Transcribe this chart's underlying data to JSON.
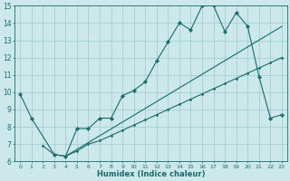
{
  "xlabel": "Humidex (Indice chaleur)",
  "ylabel": "",
  "xlim": [
    -0.5,
    23.5
  ],
  "ylim": [
    6,
    15
  ],
  "xticks": [
    0,
    1,
    2,
    3,
    4,
    5,
    6,
    7,
    8,
    9,
    10,
    11,
    12,
    13,
    14,
    15,
    16,
    17,
    18,
    19,
    20,
    21,
    22,
    23
  ],
  "yticks": [
    6,
    7,
    8,
    9,
    10,
    11,
    12,
    13,
    14,
    15
  ],
  "background_color": "#cce8ea",
  "grid_color": "#99cccc",
  "line_color": "#1a6b6b",
  "line1_x": [
    0,
    1,
    3,
    4,
    5,
    6,
    7,
    8,
    9,
    10,
    11,
    12,
    13,
    14,
    15,
    16,
    17,
    18,
    19,
    20,
    21,
    22,
    23
  ],
  "line1_y": [
    9.9,
    8.5,
    6.4,
    6.3,
    7.9,
    7.9,
    8.5,
    8.5,
    9.8,
    10.1,
    10.6,
    11.8,
    12.9,
    14.0,
    13.6,
    15.0,
    15.0,
    13.5,
    14.6,
    13.8,
    10.9,
    8.5,
    8.7
  ],
  "line2_x": [
    2,
    3,
    4,
    5,
    6,
    7,
    8,
    9,
    10,
    11,
    12,
    13,
    14,
    15,
    16,
    17,
    18,
    19,
    20,
    21,
    22,
    23
  ],
  "line2_y": [
    6.9,
    6.4,
    6.3,
    6.6,
    7.0,
    7.2,
    7.5,
    7.8,
    8.1,
    8.4,
    8.7,
    9.0,
    9.3,
    9.6,
    9.9,
    10.2,
    10.5,
    10.8,
    11.1,
    11.4,
    11.7,
    12.0
  ],
  "line3_x": [
    4,
    23
  ],
  "line3_y": [
    6.3,
    13.8
  ]
}
